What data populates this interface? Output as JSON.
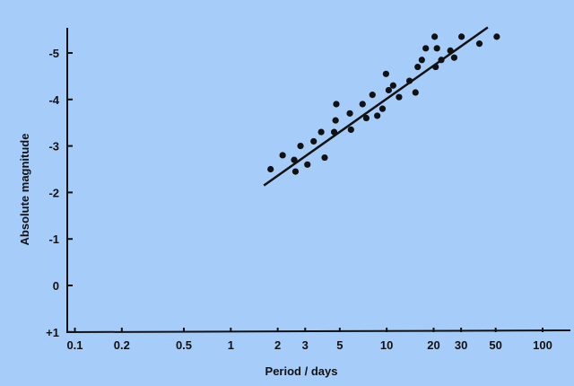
{
  "chart_data": {
    "type": "scatter",
    "title": "",
    "xlabel": "Period / days",
    "ylabel": "Absolute magnitude",
    "x_scale": "log",
    "xlim": [
      0.09,
      170
    ],
    "ylim": [
      1,
      -5.6
    ],
    "x_ticks": [
      {
        "value": 0.1,
        "label": "0.1"
      },
      {
        "value": 0.2,
        "label": "0.2"
      },
      {
        "value": 0.5,
        "label": "0.5"
      },
      {
        "value": 1,
        "label": "1"
      },
      {
        "value": 2,
        "label": "2"
      },
      {
        "value": 3,
        "label": "3"
      },
      {
        "value": 5,
        "label": "5"
      },
      {
        "value": 10,
        "label": "10"
      },
      {
        "value": 20,
        "label": "20"
      },
      {
        "value": 30,
        "label": "30"
      },
      {
        "value": 50,
        "label": "50"
      },
      {
        "value": 100,
        "label": "100"
      }
    ],
    "y_ticks": [
      {
        "value": -5,
        "label": "-5"
      },
      {
        "value": -4,
        "label": "-4"
      },
      {
        "value": -3,
        "label": "-3"
      },
      {
        "value": -2,
        "label": "-2"
      },
      {
        "value": -1,
        "label": "-1"
      },
      {
        "value": 0,
        "label": "0"
      },
      {
        "value": 1,
        "label": "+1"
      }
    ],
    "grid": false,
    "points": [
      {
        "x": 1.8,
        "y": -2.5
      },
      {
        "x": 2.15,
        "y": -2.8
      },
      {
        "x": 2.55,
        "y": -2.7
      },
      {
        "x": 2.6,
        "y": -2.45
      },
      {
        "x": 2.8,
        "y": -3.0
      },
      {
        "x": 3.1,
        "y": -2.6
      },
      {
        "x": 3.4,
        "y": -3.1
      },
      {
        "x": 3.8,
        "y": -3.3
      },
      {
        "x": 4.0,
        "y": -2.75
      },
      {
        "x": 4.6,
        "y": -3.3
      },
      {
        "x": 4.7,
        "y": -3.55
      },
      {
        "x": 4.75,
        "y": -3.9
      },
      {
        "x": 5.8,
        "y": -3.7
      },
      {
        "x": 5.9,
        "y": -3.35
      },
      {
        "x": 7.0,
        "y": -3.9
      },
      {
        "x": 7.4,
        "y": -3.6
      },
      {
        "x": 8.1,
        "y": -4.1
      },
      {
        "x": 8.7,
        "y": -3.65
      },
      {
        "x": 9.4,
        "y": -3.8
      },
      {
        "x": 9.9,
        "y": -4.55
      },
      {
        "x": 10.3,
        "y": -4.2
      },
      {
        "x": 11.0,
        "y": -4.3
      },
      {
        "x": 12.0,
        "y": -4.05
      },
      {
        "x": 14.0,
        "y": -4.4
      },
      {
        "x": 15.3,
        "y": -4.15
      },
      {
        "x": 15.8,
        "y": -4.7
      },
      {
        "x": 16.8,
        "y": -4.85
      },
      {
        "x": 17.8,
        "y": -5.1
      },
      {
        "x": 20.3,
        "y": -5.35
      },
      {
        "x": 20.6,
        "y": -4.7
      },
      {
        "x": 21.0,
        "y": -5.1
      },
      {
        "x": 22.4,
        "y": -4.85
      },
      {
        "x": 25.6,
        "y": -5.05
      },
      {
        "x": 27.1,
        "y": -4.9
      },
      {
        "x": 30.2,
        "y": -5.35
      },
      {
        "x": 39.3,
        "y": -5.2
      },
      {
        "x": 50.8,
        "y": -5.35
      }
    ],
    "fit_line": {
      "x": [
        1.63,
        44.5
      ],
      "y": [
        -2.15,
        -5.55
      ]
    },
    "colors": {
      "background": "#a6cdf9",
      "ink": "#111111"
    }
  }
}
